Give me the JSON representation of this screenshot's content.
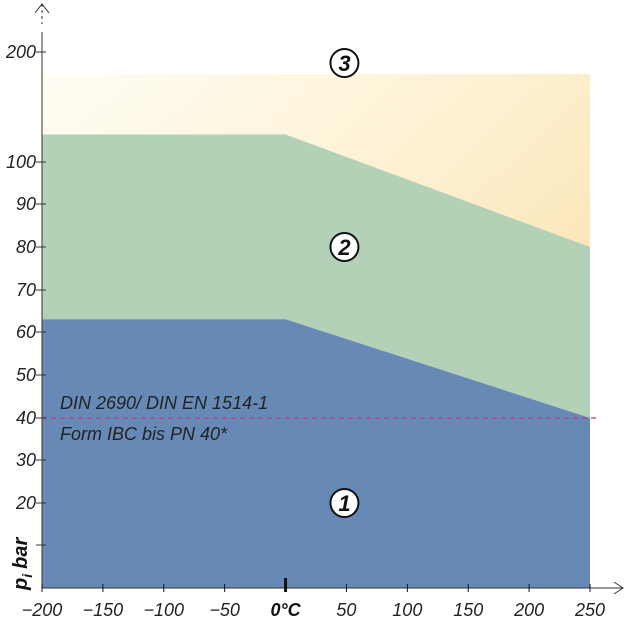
{
  "chart_data": {
    "type": "area",
    "xlabel": "",
    "ylabel": "p_i bar",
    "ylabel_main": "p",
    "ylabel_sub": "i",
    "ylabel_unit": "bar",
    "x_ticks": [
      {
        "value": -200,
        "label": "−200"
      },
      {
        "value": -150,
        "label": "−150"
      },
      {
        "value": -100,
        "label": "−100"
      },
      {
        "value": -50,
        "label": "−50"
      },
      {
        "value": 0,
        "label": "0°C"
      },
      {
        "value": 50,
        "label": "50"
      },
      {
        "value": 100,
        "label": "100"
      },
      {
        "value": 150,
        "label": "150"
      },
      {
        "value": 200,
        "label": "200"
      },
      {
        "value": 250,
        "label": "250"
      }
    ],
    "y_ticks": [
      {
        "value": 10,
        "label": ""
      },
      {
        "value": 20,
        "label": "20"
      },
      {
        "value": 30,
        "label": "30"
      },
      {
        "value": 40,
        "label": "40"
      },
      {
        "value": 50,
        "label": "50"
      },
      {
        "value": 60,
        "label": "60"
      },
      {
        "value": 70,
        "label": "70"
      },
      {
        "value": 80,
        "label": "80"
      },
      {
        "value": 90,
        "label": "90"
      },
      {
        "value": 100,
        "label": "100"
      },
      {
        "value": 200,
        "label": "200"
      }
    ],
    "xlim": [
      -200,
      250
    ],
    "ylim": [
      0,
      200
    ],
    "regions": [
      {
        "name": "3",
        "top": [
          [
            -200,
            180
          ],
          [
            250,
            180
          ]
        ],
        "color_top": "#fffdf3",
        "color_bottom": "#f9dfa3"
      },
      {
        "name": "2",
        "top": [
          [
            -200,
            125
          ],
          [
            0,
            125
          ],
          [
            250,
            80
          ]
        ],
        "color": "#b3d1b7"
      },
      {
        "name": "1",
        "top": [
          [
            -200,
            63
          ],
          [
            0,
            63
          ],
          [
            250,
            40
          ]
        ],
        "color": "#6789b6"
      }
    ],
    "zone_labels": [
      {
        "text": "3",
        "x": 50,
        "y": 190
      },
      {
        "text": "2",
        "x": 50,
        "y": 80
      },
      {
        "text": "1",
        "x": 50,
        "y": 20
      }
    ],
    "reference_line": {
      "y": 40,
      "color": "#c0398f"
    },
    "annotation_lines": [
      "DIN 2690/ DIN EN 1514-1",
      "Form IBC bis PN 40*"
    ]
  }
}
